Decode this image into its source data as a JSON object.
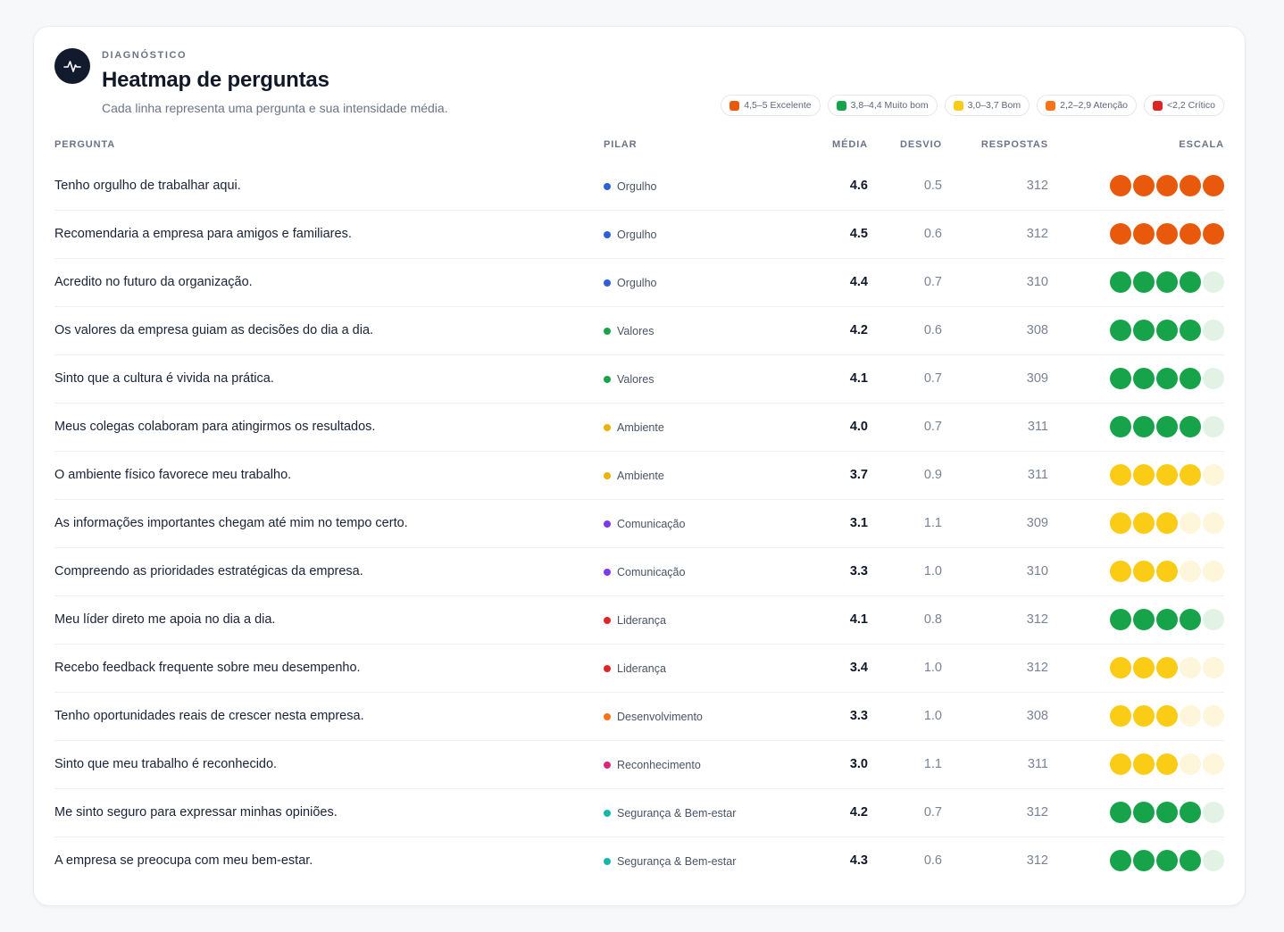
{
  "header": {
    "eyebrow": "DIAGNÓSTICO",
    "title": "Heatmap de perguntas",
    "subtitle": "Cada linha representa uma pergunta e sua intensidade média.",
    "icon": "activity-pulse-icon"
  },
  "legend": [
    {
      "label": "4,5–5 Excelente",
      "color": "#e8590c"
    },
    {
      "label": "3,8–4,4 Muito bom",
      "color": "#16a34a"
    },
    {
      "label": "3,0–3,7 Bom",
      "color": "#facc15"
    },
    {
      "label": "2,2–2,9 Atenção",
      "color": "#f97316"
    },
    {
      "label": "<2,2 Crítico",
      "color": "#dc2626"
    }
  ],
  "columns": {
    "question": "PERGUNTA",
    "pillar": "PILAR",
    "avg": "MÉDIA",
    "dev": "DESVIO",
    "responses": "RESPOSTAS",
    "scale": "ESCALA"
  },
  "pillar_colors": {
    "Orgulho": "#2f5fd6",
    "Valores": "#16a34a",
    "Ambiente": "#eab308",
    "Comunicação": "#7c3aed",
    "Liderança": "#dc2626",
    "Desenvolvimento": "#f97316",
    "Reconhecimento": "#db2777",
    "Segurança & Bem-estar": "#14b8a6"
  },
  "scale_colors": {
    "excellent": {
      "on": "#e8590c",
      "off": "#fde3d3"
    },
    "very_good": {
      "on": "#16a34a",
      "off": "#e2f3e5"
    },
    "good": {
      "on": "#facc15",
      "off": "#fef6db"
    }
  },
  "rows": [
    {
      "question": "Tenho orgulho de trabalhar aqui.",
      "pillar": "Orgulho",
      "avg": "4.6",
      "dev": "0.5",
      "responses": "312",
      "band": "excellent",
      "filled": 5
    },
    {
      "question": "Recomendaria a empresa para amigos e familiares.",
      "pillar": "Orgulho",
      "avg": "4.5",
      "dev": "0.6",
      "responses": "312",
      "band": "excellent",
      "filled": 5
    },
    {
      "question": "Acredito no futuro da organização.",
      "pillar": "Orgulho",
      "avg": "4.4",
      "dev": "0.7",
      "responses": "310",
      "band": "very_good",
      "filled": 4
    },
    {
      "question": "Os valores da empresa guiam as decisões do dia a dia.",
      "pillar": "Valores",
      "avg": "4.2",
      "dev": "0.6",
      "responses": "308",
      "band": "very_good",
      "filled": 4
    },
    {
      "question": "Sinto que a cultura é vivida na prática.",
      "pillar": "Valores",
      "avg": "4.1",
      "dev": "0.7",
      "responses": "309",
      "band": "very_good",
      "filled": 4
    },
    {
      "question": "Meus colegas colaboram para atingirmos os resultados.",
      "pillar": "Ambiente",
      "avg": "4.0",
      "dev": "0.7",
      "responses": "311",
      "band": "very_good",
      "filled": 4
    },
    {
      "question": "O ambiente físico favorece meu trabalho.",
      "pillar": "Ambiente",
      "avg": "3.7",
      "dev": "0.9",
      "responses": "311",
      "band": "good",
      "filled": 4
    },
    {
      "question": "As informações importantes chegam até mim no tempo certo.",
      "pillar": "Comunicação",
      "avg": "3.1",
      "dev": "1.1",
      "responses": "309",
      "band": "good",
      "filled": 3
    },
    {
      "question": "Compreendo as prioridades estratégicas da empresa.",
      "pillar": "Comunicação",
      "avg": "3.3",
      "dev": "1.0",
      "responses": "310",
      "band": "good",
      "filled": 3
    },
    {
      "question": "Meu líder direto me apoia no dia a dia.",
      "pillar": "Liderança",
      "avg": "4.1",
      "dev": "0.8",
      "responses": "312",
      "band": "very_good",
      "filled": 4
    },
    {
      "question": "Recebo feedback frequente sobre meu desempenho.",
      "pillar": "Liderança",
      "avg": "3.4",
      "dev": "1.0",
      "responses": "312",
      "band": "good",
      "filled": 3
    },
    {
      "question": "Tenho oportunidades reais de crescer nesta empresa.",
      "pillar": "Desenvolvimento",
      "avg": "3.3",
      "dev": "1.0",
      "responses": "308",
      "band": "good",
      "filled": 3
    },
    {
      "question": "Sinto que meu trabalho é reconhecido.",
      "pillar": "Reconhecimento",
      "avg": "3.0",
      "dev": "1.1",
      "responses": "311",
      "band": "good",
      "filled": 3
    },
    {
      "question": "Me sinto seguro para expressar minhas opiniões.",
      "pillar": "Segurança & Bem-estar",
      "avg": "4.2",
      "dev": "0.7",
      "responses": "312",
      "band": "very_good",
      "filled": 4
    },
    {
      "question": "A empresa se preocupa com meu bem-estar.",
      "pillar": "Segurança & Bem-estar",
      "avg": "4.3",
      "dev": "0.6",
      "responses": "312",
      "band": "very_good",
      "filled": 4
    }
  ]
}
